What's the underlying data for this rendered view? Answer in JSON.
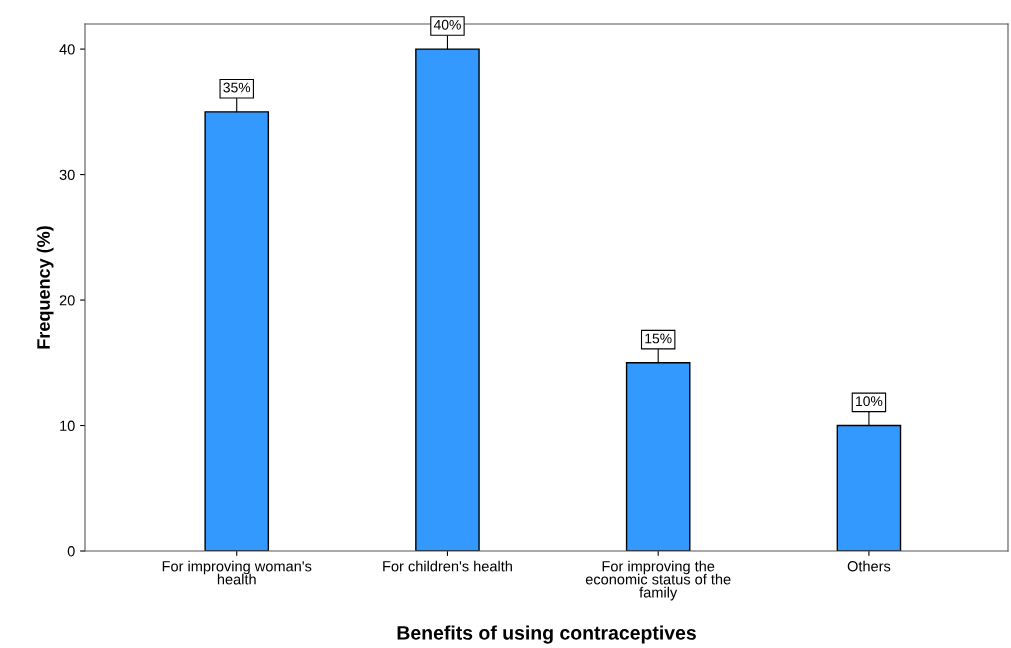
{
  "chart_data": {
    "type": "bar",
    "xlabel": "Benefits of using contraceptives",
    "ylabel": "Frequency (%)",
    "categories": [
      "For improving woman's\nhealth",
      "For children's health",
      "For improving the\neconomic status of the\nfamily",
      "Others"
    ],
    "values": [
      35,
      40,
      15,
      10
    ],
    "color": "#3399ff",
    "value_labels": [
      "35%",
      "40%",
      "15%",
      "10%"
    ],
    "ylim": [
      0,
      42
    ],
    "yticks": [
      0,
      10,
      20,
      30,
      40
    ],
    "grid": false,
    "legend": false
  }
}
